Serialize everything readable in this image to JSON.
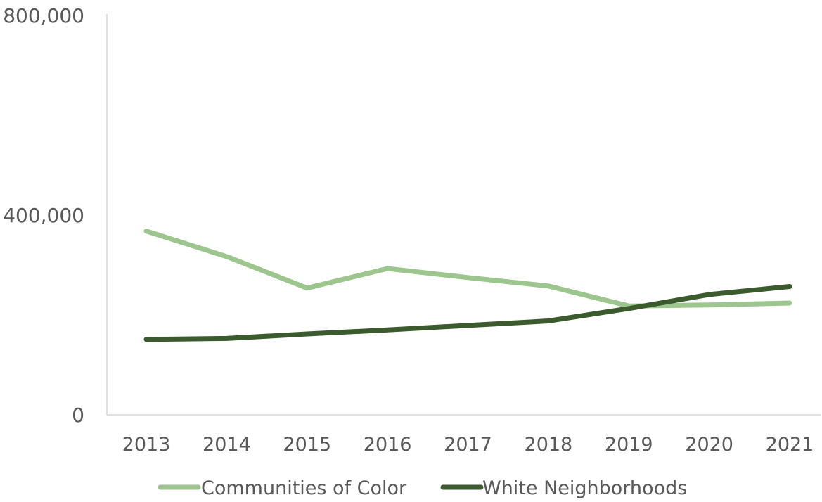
{
  "chart_data": {
    "type": "line",
    "title": "",
    "xlabel": "",
    "ylabel": "",
    "x": [
      "2013",
      "2014",
      "2015",
      "2016",
      "2017",
      "2018",
      "2019",
      "2020",
      "2021"
    ],
    "yticks": [
      "0",
      "400,000",
      "800,000"
    ],
    "ytick_values": [
      0,
      400000,
      800000
    ],
    "ylim": [
      0,
      800000
    ],
    "grid": false,
    "legend_position": "bottom",
    "series": [
      {
        "name": "Communities of Color",
        "color": "#9dc58e",
        "values": [
          368000,
          317000,
          254000,
          293000,
          275000,
          258000,
          218000,
          220000,
          224000
        ]
      },
      {
        "name": "White Neighborhoods",
        "color": "#3b5a2e",
        "values": [
          151000,
          153000,
          162000,
          170000,
          179000,
          188000,
          213000,
          241000,
          257000
        ]
      }
    ]
  }
}
